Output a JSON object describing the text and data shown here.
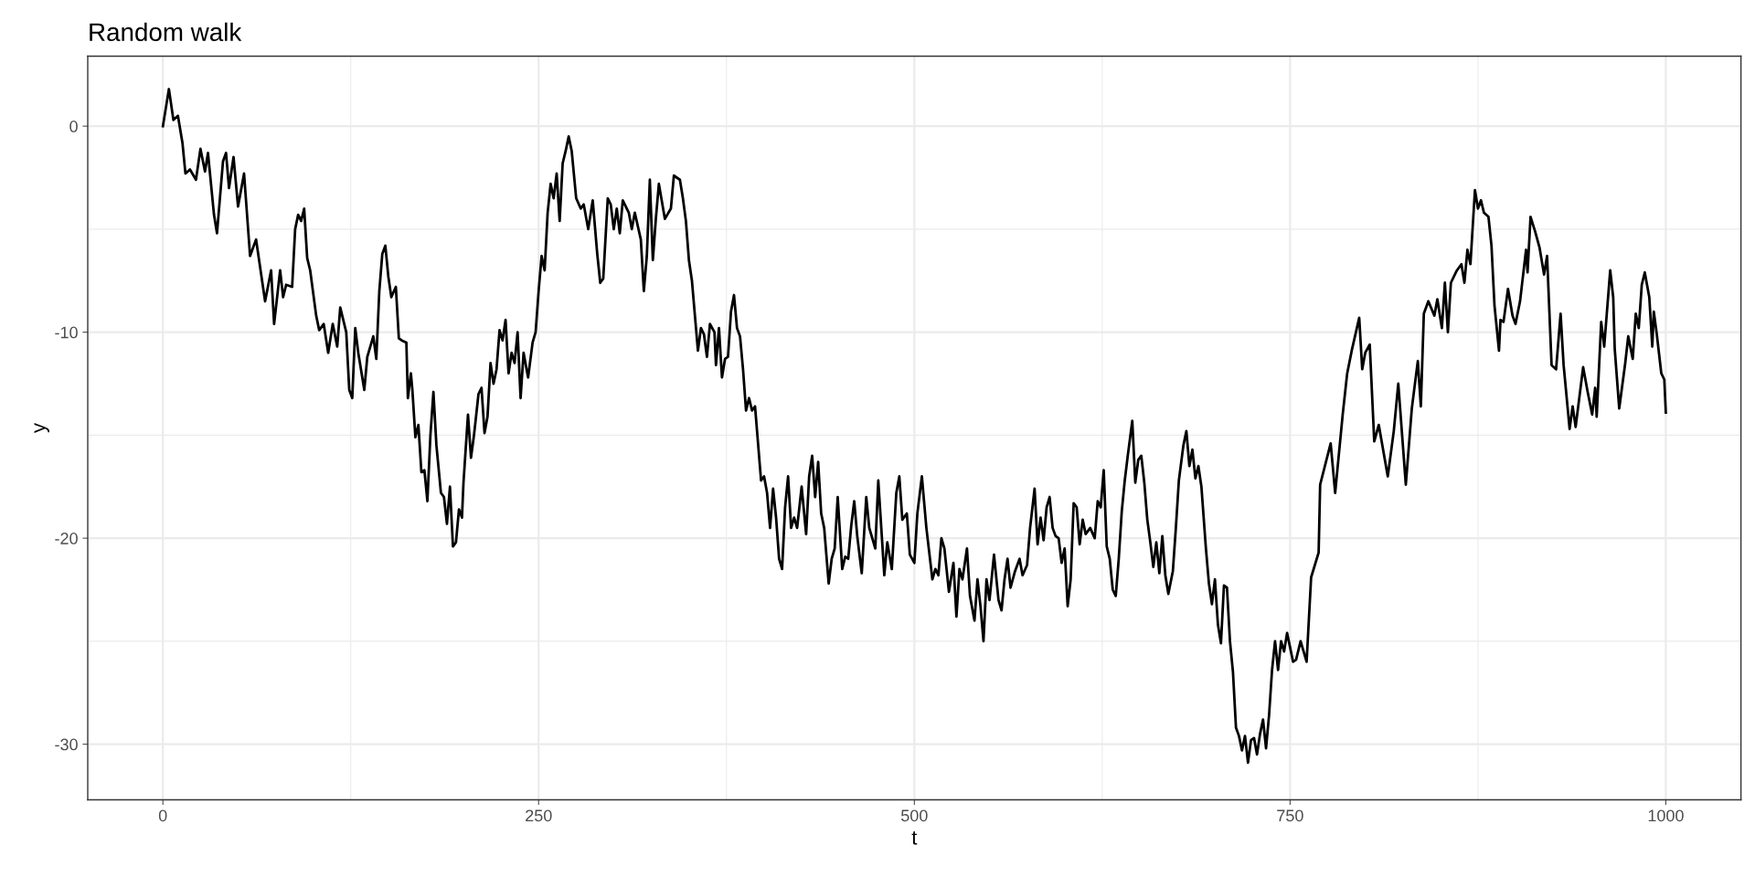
{
  "chart_data": {
    "type": "line",
    "title": "Random walk",
    "xlabel": "t",
    "ylabel": "y",
    "xlim": [
      -50,
      1050
    ],
    "ylim": [
      -32.7,
      3.4
    ],
    "xticks": [
      0,
      250,
      500,
      750,
      1000
    ],
    "yticks": [
      -30,
      -20,
      -10,
      0
    ],
    "grid": true,
    "marker": "none",
    "line_style": "solid",
    "series": [
      {
        "color": "#000000",
        "x": [
          0,
          4,
          7,
          10,
          13,
          15,
          18,
          22,
          25,
          28,
          30,
          34,
          36,
          40,
          42,
          44,
          47,
          50,
          54,
          58,
          62,
          66,
          68,
          72,
          74,
          78,
          80,
          82,
          86,
          88,
          90,
          92,
          94,
          96,
          98,
          102,
          104,
          107,
          110,
          113,
          116,
          118,
          122,
          124,
          126,
          128,
          130,
          134,
          136,
          140,
          142,
          144,
          146,
          148,
          150,
          152,
          155,
          157,
          159,
          162,
          163,
          165,
          166,
          168,
          170,
          172,
          174,
          176,
          178,
          180,
          182,
          185,
          187,
          189,
          191,
          193,
          195,
          197,
          199,
          200,
          203,
          205,
          207,
          210,
          212,
          214,
          216,
          218,
          220,
          222,
          224,
          226,
          228,
          230,
          232,
          234,
          236,
          238,
          240,
          243,
          246,
          248,
          250,
          252,
          254,
          256,
          258,
          260,
          262,
          264,
          266,
          268,
          270,
          272,
          275,
          278,
          280,
          283,
          286,
          289,
          291,
          293,
          296,
          298,
          300,
          302,
          304,
          306,
          310,
          312,
          314,
          318,
          320,
          322,
          324,
          326,
          328,
          330,
          334,
          338,
          340,
          344,
          346,
          348,
          350,
          352,
          354,
          356,
          358,
          360,
          362,
          364,
          367,
          368,
          370,
          372,
          374,
          376,
          378,
          380,
          382,
          384,
          386,
          388,
          390,
          392,
          394,
          398,
          400,
          402,
          404,
          406,
          408,
          410,
          412,
          414,
          416,
          418,
          420,
          422,
          425,
          428,
          430,
          432,
          434,
          436,
          438,
          440,
          443,
          445,
          447,
          449,
          452,
          454,
          456,
          458,
          460,
          462,
          465,
          468,
          470,
          472,
          474,
          476,
          478,
          480,
          482,
          485,
          488,
          490,
          492,
          495,
          497,
          500,
          502,
          505,
          508,
          512,
          514,
          516,
          518,
          520,
          523,
          526,
          528,
          530,
          532,
          535,
          537,
          540,
          542,
          544,
          546,
          548,
          550,
          553,
          556,
          558,
          560,
          562,
          564,
          567,
          570,
          572,
          575,
          577,
          580,
          582,
          584,
          586,
          588,
          590,
          592,
          594,
          596,
          598,
          600,
          602,
          604,
          606,
          608,
          610,
          612,
          614,
          617,
          620,
          622,
          624,
          626,
          628,
          630,
          632,
          634,
          636,
          638,
          640,
          642,
          645,
          647,
          649,
          651,
          653,
          655,
          657,
          659,
          661,
          663,
          665,
          667,
          669,
          672,
          674,
          676,
          679,
          681,
          683,
          685,
          687,
          689,
          691,
          694,
          696,
          698,
          700,
          702,
          704,
          706,
          708,
          710,
          712,
          714,
          716,
          718,
          720,
          722,
          724,
          726,
          728,
          730,
          732,
          734,
          736,
          738,
          740,
          742,
          744,
          746,
          748,
          750,
          752,
          754,
          757,
          761,
          764,
          769,
          770,
          777,
          780,
          785,
          788,
          791,
          796,
          798,
          800,
          803,
          806,
          809,
          815,
          819,
          822,
          827,
          831,
          835,
          837,
          839,
          842,
          846,
          848,
          851,
          853,
          855,
          857,
          861,
          864,
          866,
          868,
          870,
          873,
          875,
          877,
          879,
          882,
          884,
          886,
          889,
          890,
          892,
          895,
          898,
          900,
          903,
          907,
          908,
          910,
          913,
          916,
          919,
          921,
          924,
          927,
          929,
          930,
          932,
          936,
          938,
          940,
          945,
          948,
          951,
          953,
          954,
          957,
          959,
          963,
          965,
          966,
          969,
          973,
          975,
          978,
          980,
          982,
          984,
          986,
          989,
          991,
          992,
          994,
          997,
          999,
          1000
        ],
        "values": [
          0,
          1.8,
          0.3,
          0.5,
          -0.8,
          -2.3,
          -2.1,
          -2.6,
          -1.1,
          -2.2,
          -1.3,
          -4.3,
          -5.2,
          -1.7,
          -1.3,
          -3.0,
          -1.5,
          -3.9,
          -2.3,
          -6.3,
          -5.5,
          -7.5,
          -8.5,
          -7.0,
          -9.6,
          -7.0,
          -8.3,
          -7.7,
          -7.8,
          -5.0,
          -4.3,
          -4.6,
          -4.0,
          -6.4,
          -7.0,
          -9.2,
          -9.9,
          -9.6,
          -11.0,
          -9.6,
          -10.7,
          -8.8,
          -10.0,
          -12.8,
          -13.2,
          -9.8,
          -11.0,
          -12.8,
          -11.2,
          -10.2,
          -11.3,
          -8.0,
          -6.2,
          -5.8,
          -7.3,
          -8.3,
          -7.8,
          -10.3,
          -10.4,
          -10.5,
          -13.2,
          -12.0,
          -12.8,
          -15.1,
          -14.5,
          -16.8,
          -16.7,
          -18.2,
          -15.0,
          -12.9,
          -15.5,
          -17.8,
          -18.0,
          -19.3,
          -17.5,
          -20.4,
          -20.2,
          -18.6,
          -19.0,
          -17.3,
          -14.0,
          -16.1,
          -15.0,
          -13.0,
          -12.7,
          -14.9,
          -14.1,
          -11.5,
          -12.5,
          -11.8,
          -9.9,
          -10.4,
          -9.4,
          -12.0,
          -11.0,
          -11.5,
          -10.0,
          -13.2,
          -11.0,
          -12.2,
          -10.5,
          -10.0,
          -8.0,
          -6.3,
          -7.0,
          -4.2,
          -2.8,
          -3.5,
          -2.3,
          -4.6,
          -1.8,
          -1.2,
          -0.5,
          -1.2,
          -3.5,
          -4.0,
          -3.8,
          -5.0,
          -3.6,
          -6.2,
          -7.6,
          -7.4,
          -3.5,
          -3.8,
          -5.0,
          -4.0,
          -5.2,
          -3.6,
          -4.2,
          -5.0,
          -4.2,
          -5.5,
          -8.0,
          -6.3,
          -2.6,
          -6.5,
          -4.5,
          -2.8,
          -4.5,
          -4.0,
          -2.4,
          -2.6,
          -3.5,
          -4.6,
          -6.5,
          -7.5,
          -9.2,
          -10.9,
          -9.8,
          -10.1,
          -11.2,
          -9.6,
          -10.0,
          -11.6,
          -9.8,
          -12.2,
          -11.3,
          -11.2,
          -9.0,
          -8.2,
          -9.8,
          -10.2,
          -11.8,
          -13.8,
          -13.2,
          -13.8,
          -13.6,
          -17.2,
          -17.0,
          -17.8,
          -19.5,
          -17.6,
          -19.0,
          -21.0,
          -21.5,
          -18.5,
          -17.0,
          -19.5,
          -19.0,
          -19.5,
          -17.5,
          -19.8,
          -17.0,
          -16.0,
          -18.0,
          -16.3,
          -18.8,
          -19.5,
          -22.2,
          -21.0,
          -20.5,
          -18.0,
          -21.5,
          -20.9,
          -21.0,
          -19.4,
          -18.2,
          -19.9,
          -21.7,
          -18.0,
          -19.5,
          -20.0,
          -20.5,
          -17.2,
          -19.5,
          -21.8,
          -20.2,
          -21.5,
          -17.8,
          -17.0,
          -19.1,
          -18.8,
          -20.8,
          -21.2,
          -18.8,
          -17.0,
          -19.5,
          -22.0,
          -21.5,
          -21.8,
          -20.0,
          -20.5,
          -22.6,
          -21.2,
          -23.8,
          -21.5,
          -22.0,
          -20.5,
          -22.8,
          -24.0,
          -22.0,
          -23.3,
          -25.0,
          -22.0,
          -23.0,
          -20.8,
          -23.0,
          -23.5,
          -22.0,
          -21.0,
          -22.4,
          -21.6,
          -21.0,
          -21.8,
          -21.3,
          -19.5,
          -17.6,
          -20.3,
          -19.0,
          -20.1,
          -18.5,
          -18.0,
          -19.5,
          -19.9,
          -20.0,
          -21.2,
          -20.5,
          -23.3,
          -22.0,
          -18.3,
          -18.5,
          -20.3,
          -19.1,
          -19.8,
          -19.5,
          -20.0,
          -18.2,
          -18.5,
          -16.7,
          -20.4,
          -21.0,
          -22.5,
          -22.8,
          -21.0,
          -18.7,
          -17.2,
          -16.0,
          -14.3,
          -17.3,
          -16.2,
          -16.0,
          -17.3,
          -19.1,
          -20.2,
          -21.4,
          -20.2,
          -21.7,
          -19.9,
          -21.8,
          -22.7,
          -21.6,
          -19.5,
          -17.2,
          -15.5,
          -14.8,
          -16.5,
          -15.7,
          -17.1,
          -16.5,
          -17.5,
          -20.5,
          -22.2,
          -23.2,
          -22.0,
          -24.2,
          -25.1,
          -22.3,
          -22.4,
          -25.0,
          -26.5,
          -29.2,
          -29.6,
          -30.3,
          -29.6,
          -30.9,
          -29.8,
          -29.7,
          -30.5,
          -29.5,
          -28.8,
          -30.2,
          -28.6,
          -26.4,
          -25.0,
          -26.4,
          -25.0,
          -25.5,
          -24.6,
          -25.3,
          -26.0,
          -25.9,
          -25.0,
          -26.0,
          -21.9,
          -20.7,
          -17.4,
          -15.4,
          -17.8,
          -14.0,
          -12.0,
          -10.9,
          -9.3,
          -11.8,
          -11.0,
          -10.6,
          -15.3,
          -14.5,
          -17.0,
          -14.8,
          -12.5,
          -17.4,
          -13.7,
          -11.4,
          -13.6,
          -9.1,
          -8.5,
          -9.2,
          -8.4,
          -9.8,
          -7.6,
          -10.0,
          -7.6,
          -7.0,
          -6.7,
          -7.6,
          -6.0,
          -6.7,
          -3.1,
          -4.0,
          -3.6,
          -4.2,
          -4.4,
          -5.8,
          -8.7,
          -10.9,
          -9.4,
          -9.5,
          -7.9,
          -9.2,
          -9.6,
          -8.5,
          -6.0,
          -7.1,
          -4.4,
          -5.1,
          -5.9,
          -7.2,
          -6.3,
          -11.6,
          -11.8,
          -10.0,
          -9.1,
          -11.6,
          -14.7,
          -13.6,
          -14.6,
          -11.7,
          -12.9,
          -14.0,
          -12.7,
          -14.1,
          -9.5,
          -10.7,
          -7.0,
          -8.3,
          -10.8,
          -13.7,
          -11.5,
          -10.2,
          -11.3,
          -9.1,
          -9.8,
          -7.7,
          -7.1,
          -8.3,
          -10.7,
          -9.0,
          -10.1,
          -12.0,
          -12.3,
          -13.9
        ]
      }
    ]
  }
}
